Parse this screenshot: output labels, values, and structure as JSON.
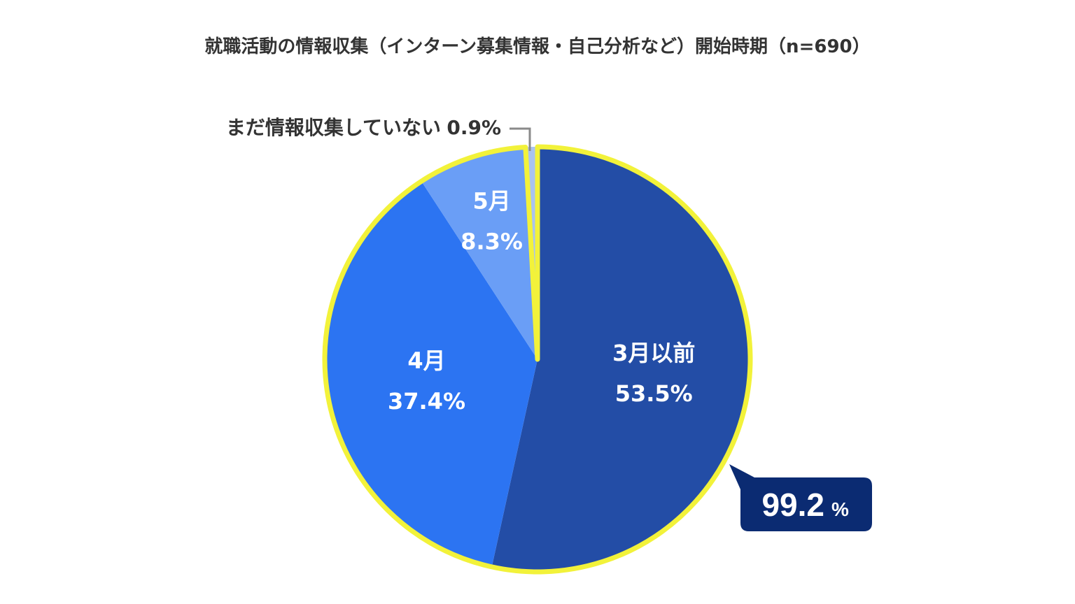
{
  "chart_data": {
    "type": "pie",
    "title": "就職活動の情報収集（インターン募集情報・自己分析など）開始時期（n=690）",
    "start": "top",
    "direction": "clockwise",
    "slices": [
      {
        "label": "3月以前",
        "value": 53.5,
        "value_label": "53.5%",
        "color": "#234da6"
      },
      {
        "label": "4月",
        "value": 37.4,
        "value_label": "37.4%",
        "color": "#2c74f2"
      },
      {
        "label": "5月",
        "value": 8.3,
        "value_label": "8.3%",
        "color": "#6a9ef6"
      },
      {
        "label": "まだ情報収集していない",
        "value": 0.9,
        "value_label": "0.9%",
        "color": "#a9c3f0"
      }
    ],
    "highlight": {
      "value_label": "99.2",
      "unit": "%",
      "outline_color": "#f2f23a",
      "callout_color": "#0b2b72"
    }
  }
}
